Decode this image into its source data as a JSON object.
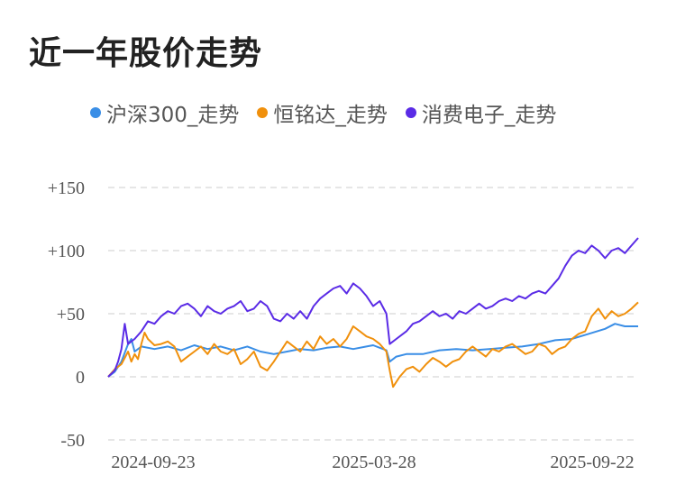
{
  "title": "近一年股价走势",
  "colors": {
    "csi300": "#3a8ee6",
    "hmd": "#f0900c",
    "consumer": "#5a2be6",
    "grid": "#e6e6e6"
  },
  "legend": [
    {
      "label": "沪深300_走势",
      "color": "#3a8ee6"
    },
    {
      "label": "恒铭达_走势",
      "color": "#f0900c"
    },
    {
      "label": "消费电子_走势",
      "color": "#5a2be6"
    }
  ],
  "chart_data": {
    "type": "line",
    "ylim": [
      -50,
      150
    ],
    "yticks": [
      150,
      100,
      50,
      0,
      -50
    ],
    "ytick_labels": [
      "+150",
      "+100",
      "+50",
      "0",
      "-50"
    ],
    "xtick_labels": [
      "2024-09-23",
      "2025-03-28",
      "2025-09-22"
    ],
    "grid": true,
    "legend_position": "top",
    "series": [
      {
        "name": "沪深300_走势",
        "color": "#3a8ee6",
        "points": [
          [
            0,
            0
          ],
          [
            2,
            4
          ],
          [
            4,
            12
          ],
          [
            6,
            26
          ],
          [
            7,
            30
          ],
          [
            8,
            20
          ],
          [
            10,
            24
          ],
          [
            14,
            22
          ],
          [
            18,
            24
          ],
          [
            22,
            21
          ],
          [
            26,
            25
          ],
          [
            30,
            22
          ],
          [
            34,
            24
          ],
          [
            38,
            21
          ],
          [
            42,
            24
          ],
          [
            46,
            20
          ],
          [
            50,
            18
          ],
          [
            54,
            20
          ],
          [
            58,
            22
          ],
          [
            62,
            21
          ],
          [
            66,
            23
          ],
          [
            70,
            24
          ],
          [
            74,
            22
          ],
          [
            78,
            24
          ],
          [
            80,
            25
          ],
          [
            82,
            23
          ],
          [
            84,
            21
          ],
          [
            85,
            12
          ],
          [
            87,
            16
          ],
          [
            90,
            18
          ],
          [
            95,
            18
          ],
          [
            100,
            21
          ],
          [
            105,
            22
          ],
          [
            110,
            21
          ],
          [
            115,
            22
          ],
          [
            120,
            23
          ],
          [
            125,
            24
          ],
          [
            130,
            26
          ],
          [
            135,
            29
          ],
          [
            140,
            30
          ],
          [
            145,
            34
          ],
          [
            150,
            38
          ],
          [
            153,
            42
          ],
          [
            156,
            40
          ],
          [
            160,
            40
          ]
        ]
      },
      {
        "name": "恒铭达_走势",
        "color": "#f0900c",
        "points": [
          [
            0,
            0
          ],
          [
            2,
            6
          ],
          [
            4,
            10
          ],
          [
            6,
            20
          ],
          [
            7,
            12
          ],
          [
            8,
            18
          ],
          [
            9,
            14
          ],
          [
            10,
            26
          ],
          [
            11,
            35
          ],
          [
            12,
            30
          ],
          [
            14,
            25
          ],
          [
            16,
            26
          ],
          [
            18,
            28
          ],
          [
            20,
            24
          ],
          [
            22,
            12
          ],
          [
            24,
            16
          ],
          [
            26,
            20
          ],
          [
            28,
            24
          ],
          [
            30,
            18
          ],
          [
            32,
            26
          ],
          [
            34,
            20
          ],
          [
            36,
            18
          ],
          [
            38,
            22
          ],
          [
            40,
            10
          ],
          [
            42,
            14
          ],
          [
            44,
            20
          ],
          [
            46,
            8
          ],
          [
            48,
            5
          ],
          [
            50,
            12
          ],
          [
            52,
            20
          ],
          [
            54,
            28
          ],
          [
            56,
            24
          ],
          [
            58,
            20
          ],
          [
            60,
            28
          ],
          [
            62,
            22
          ],
          [
            64,
            32
          ],
          [
            66,
            26
          ],
          [
            68,
            30
          ],
          [
            70,
            24
          ],
          [
            72,
            30
          ],
          [
            74,
            40
          ],
          [
            76,
            36
          ],
          [
            78,
            32
          ],
          [
            80,
            30
          ],
          [
            82,
            26
          ],
          [
            84,
            20
          ],
          [
            85,
            5
          ],
          [
            86,
            -8
          ],
          [
            88,
            0
          ],
          [
            90,
            6
          ],
          [
            92,
            8
          ],
          [
            94,
            4
          ],
          [
            96,
            10
          ],
          [
            98,
            15
          ],
          [
            100,
            12
          ],
          [
            102,
            8
          ],
          [
            104,
            12
          ],
          [
            106,
            14
          ],
          [
            108,
            20
          ],
          [
            110,
            24
          ],
          [
            112,
            20
          ],
          [
            114,
            16
          ],
          [
            116,
            22
          ],
          [
            118,
            20
          ],
          [
            120,
            24
          ],
          [
            122,
            26
          ],
          [
            124,
            22
          ],
          [
            126,
            18
          ],
          [
            128,
            20
          ],
          [
            130,
            26
          ],
          [
            132,
            24
          ],
          [
            134,
            18
          ],
          [
            136,
            22
          ],
          [
            138,
            24
          ],
          [
            140,
            30
          ],
          [
            142,
            34
          ],
          [
            144,
            36
          ],
          [
            146,
            48
          ],
          [
            148,
            54
          ],
          [
            150,
            46
          ],
          [
            152,
            52
          ],
          [
            154,
            48
          ],
          [
            156,
            50
          ],
          [
            158,
            54
          ],
          [
            160,
            59
          ]
        ]
      },
      {
        "name": "消费电子_走势",
        "color": "#5a2be6",
        "points": [
          [
            0,
            0
          ],
          [
            2,
            5
          ],
          [
            3,
            12
          ],
          [
            4,
            22
          ],
          [
            5,
            42
          ],
          [
            6,
            26
          ],
          [
            7,
            28
          ],
          [
            8,
            30
          ],
          [
            10,
            36
          ],
          [
            12,
            44
          ],
          [
            14,
            42
          ],
          [
            16,
            48
          ],
          [
            18,
            52
          ],
          [
            20,
            50
          ],
          [
            22,
            56
          ],
          [
            24,
            58
          ],
          [
            26,
            54
          ],
          [
            28,
            48
          ],
          [
            30,
            56
          ],
          [
            32,
            52
          ],
          [
            34,
            50
          ],
          [
            36,
            54
          ],
          [
            38,
            56
          ],
          [
            40,
            60
          ],
          [
            42,
            52
          ],
          [
            44,
            54
          ],
          [
            46,
            60
          ],
          [
            48,
            56
          ],
          [
            50,
            46
          ],
          [
            52,
            44
          ],
          [
            54,
            50
          ],
          [
            56,
            46
          ],
          [
            58,
            52
          ],
          [
            60,
            46
          ],
          [
            62,
            56
          ],
          [
            64,
            62
          ],
          [
            66,
            66
          ],
          [
            68,
            70
          ],
          [
            70,
            72
          ],
          [
            72,
            66
          ],
          [
            74,
            74
          ],
          [
            76,
            70
          ],
          [
            78,
            64
          ],
          [
            80,
            56
          ],
          [
            82,
            60
          ],
          [
            84,
            50
          ],
          [
            85,
            26
          ],
          [
            87,
            30
          ],
          [
            90,
            36
          ],
          [
            92,
            42
          ],
          [
            94,
            44
          ],
          [
            96,
            48
          ],
          [
            98,
            52
          ],
          [
            100,
            48
          ],
          [
            102,
            50
          ],
          [
            104,
            46
          ],
          [
            106,
            52
          ],
          [
            108,
            50
          ],
          [
            110,
            54
          ],
          [
            112,
            58
          ],
          [
            114,
            54
          ],
          [
            116,
            56
          ],
          [
            118,
            60
          ],
          [
            120,
            62
          ],
          [
            122,
            60
          ],
          [
            124,
            64
          ],
          [
            126,
            62
          ],
          [
            128,
            66
          ],
          [
            130,
            68
          ],
          [
            132,
            66
          ],
          [
            134,
            72
          ],
          [
            136,
            78
          ],
          [
            138,
            88
          ],
          [
            140,
            96
          ],
          [
            142,
            100
          ],
          [
            144,
            98
          ],
          [
            146,
            104
          ],
          [
            148,
            100
          ],
          [
            150,
            94
          ],
          [
            152,
            100
          ],
          [
            154,
            102
          ],
          [
            156,
            98
          ],
          [
            158,
            104
          ],
          [
            160,
            110
          ]
        ]
      }
    ]
  }
}
